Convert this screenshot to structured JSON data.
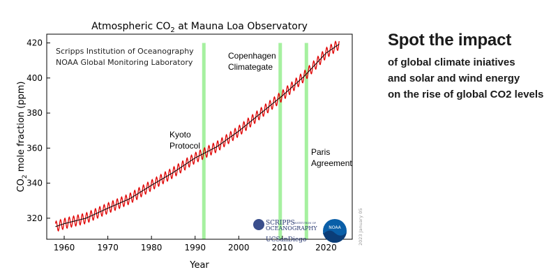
{
  "chart_data": {
    "type": "line",
    "title_main": "Atmospheric CO",
    "title_sub": "2",
    "title_rest": " at Mauna Loa Observatory",
    "xlabel": "Year",
    "ylabel_main": "CO",
    "ylabel_sub": "2",
    "ylabel_rest": " mole fraction (ppm)",
    "xlim": [
      1956,
      2026
    ],
    "ylim": [
      308,
      425
    ],
    "xticks": [
      1960,
      1970,
      1980,
      1990,
      2000,
      2010,
      2020
    ],
    "yticks": [
      320,
      340,
      360,
      380,
      400,
      420
    ],
    "series": [
      {
        "key": "monthly",
        "color": "#e00000",
        "seasonal_amplitude": 3.0,
        "x": [
          1958,
          1960,
          1965,
          1970,
          1975,
          1980,
          1985,
          1990,
          1995,
          2000,
          2005,
          2010,
          2015,
          2020,
          2023
        ],
        "values": [
          315.2,
          316.9,
          320.0,
          325.7,
          331.1,
          338.8,
          346.1,
          354.4,
          360.8,
          369.7,
          379.8,
          389.9,
          401.0,
          414.2,
          419.3
        ]
      },
      {
        "key": "trend",
        "color": "#000000",
        "x": [
          1958,
          1960,
          1965,
          1970,
          1975,
          1980,
          1985,
          1990,
          1995,
          2000,
          2005,
          2010,
          2015,
          2020,
          2023
        ],
        "values": [
          315.2,
          316.9,
          320.0,
          325.7,
          331.1,
          338.8,
          346.1,
          354.4,
          360.8,
          369.7,
          379.8,
          389.9,
          401.0,
          414.2,
          419.3
        ]
      }
    ],
    "events": [
      {
        "year": 1992,
        "label1": "Kyoto",
        "label2": "Protocol",
        "color": "#a6f0a0"
      },
      {
        "year": 2009.5,
        "label1": "Copenhagen",
        "label2": "Climategate",
        "color": "#a6f0a0"
      },
      {
        "year": 2015.5,
        "label1": "Paris",
        "label2": "Agreement",
        "color": "#a6f0a0"
      }
    ],
    "source_lines": [
      "Scripps Institution of Oceanography",
      "NOAA Global Monitoring Laboratory"
    ],
    "logo_scripps_1": "SCRIPPS",
    "logo_scripps_small": "INSTITUTION OF",
    "logo_scripps_2": "OCEANOGRAPHY",
    "logo_ucsd": "UCSanDiego",
    "logo_noaa": "NOAA",
    "date_stamp": "2023 January 05",
    "grid": false,
    "legend": "none"
  },
  "side": {
    "headline": "Spot the impact",
    "lines": [
      "of global climate iniatives",
      "and solar and wind energy",
      "on the rise of global CO2 levels"
    ]
  },
  "colors": {
    "band": "#a6f0a0",
    "monthly": "#e00000",
    "trend": "#000000",
    "text": "#1a1a1a"
  }
}
